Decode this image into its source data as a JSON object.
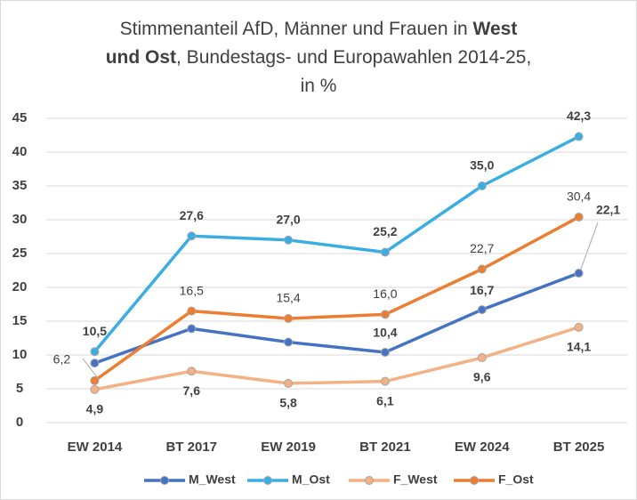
{
  "chart_data": {
    "type": "line",
    "title": [
      [
        {
          "text": "Stimmenanteil AfD, Männer und Frauen in ",
          "bold": false
        },
        {
          "text": "West",
          "bold": true
        }
      ],
      [
        {
          "text": "und Ost",
          "bold": true
        },
        {
          "text": ", Bundestags- und Europawahlen 2014-25,",
          "bold": false
        }
      ],
      [
        {
          "text": "in %",
          "bold": false
        }
      ]
    ],
    "categories": [
      "EW 2014",
      "BT 2017",
      "EW 2019",
      "BT 2021",
      "EW 2024",
      "BT 2025"
    ],
    "ylim": [
      0,
      45
    ],
    "yticks": [
      0,
      5,
      10,
      15,
      20,
      25,
      30,
      35,
      40,
      45
    ],
    "grid": true,
    "legend": "bottom",
    "series": [
      {
        "name": "M_West",
        "color": "#4472c4",
        "label_bold": true,
        "values": [
          8.8,
          13.9,
          11.9,
          10.4,
          16.7,
          22.1
        ],
        "value_labels": [
          null,
          null,
          null,
          "10,4",
          "16,7",
          "22,1"
        ]
      },
      {
        "name": "M_Ost",
        "color": "#3aaee2",
        "label_bold": true,
        "values": [
          10.5,
          27.6,
          27.0,
          25.2,
          35.0,
          42.3
        ],
        "value_labels": [
          "10,5",
          "27,6",
          "27,0",
          "25,2",
          "35,0",
          "42,3"
        ]
      },
      {
        "name": "F_West",
        "color": "#f4b183",
        "label_bold": true,
        "values": [
          4.9,
          7.6,
          5.8,
          6.1,
          9.6,
          14.1
        ],
        "value_labels": [
          "4,9",
          "7,6",
          "5,8",
          "6,1",
          "9,6",
          "14,1"
        ]
      },
      {
        "name": "F_Ost",
        "color": "#ed7d31",
        "label_bold": false,
        "values": [
          6.2,
          16.5,
          15.4,
          16.0,
          22.7,
          30.4
        ],
        "value_labels": [
          "6,2",
          "16,5",
          "15,4",
          "16,0",
          "22,7",
          "30,4"
        ]
      }
    ]
  }
}
